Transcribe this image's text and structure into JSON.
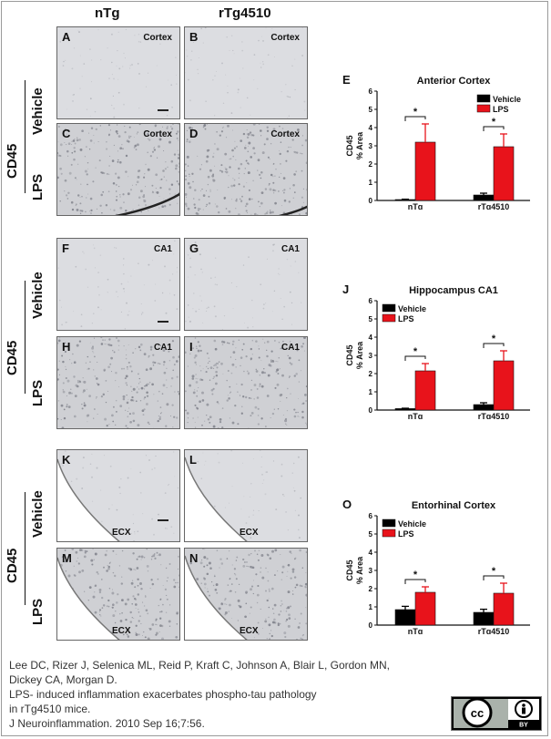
{
  "columns": [
    "nTg",
    "rTg4510"
  ],
  "groups": [
    {
      "marker": "CD45",
      "rows": [
        {
          "label": "Vehicle",
          "panels": [
            {
              "letter": "A",
              "region": "Cortex"
            },
            {
              "letter": "B",
              "region": "Cortex"
            }
          ]
        },
        {
          "label": "LPS",
          "panels": [
            {
              "letter": "C",
              "region": "Cortex"
            },
            {
              "letter": "D",
              "region": "Cortex"
            }
          ]
        }
      ]
    },
    {
      "marker": "CD45",
      "rows": [
        {
          "label": "Vehicle",
          "panels": [
            {
              "letter": "F",
              "region": "CA1"
            },
            {
              "letter": "G",
              "region": "CA1"
            }
          ]
        },
        {
          "label": "LPS",
          "panels": [
            {
              "letter": "H",
              "region": "CA1"
            },
            {
              "letter": "I",
              "region": "CA1"
            }
          ]
        }
      ]
    },
    {
      "marker": "CD45",
      "rows": [
        {
          "label": "Vehicle",
          "panels": [
            {
              "letter": "K",
              "region": "ECX"
            },
            {
              "letter": "L",
              "region": "ECX"
            }
          ]
        },
        {
          "label": "LPS",
          "panels": [
            {
              "letter": "M",
              "region": "ECX"
            },
            {
              "letter": "N",
              "region": "ECX"
            }
          ]
        }
      ]
    }
  ],
  "chart_data": [
    {
      "type": "bar",
      "letter": "E",
      "title": "Anterior Cortex",
      "ylabel": "CD45 % Area",
      "ylim": [
        0,
        6
      ],
      "yticks": [
        0,
        1,
        2,
        3,
        4,
        5,
        6
      ],
      "categories": [
        "nTg",
        "rTg4510"
      ],
      "series": [
        {
          "name": "Vehicle",
          "color": "#000000",
          "values": [
            0.05,
            0.3
          ],
          "errors": [
            0.02,
            0.1
          ]
        },
        {
          "name": "LPS",
          "color": "#e8131b",
          "values": [
            3.2,
            2.95
          ],
          "errors": [
            1.0,
            0.7
          ]
        }
      ],
      "significance": [
        "*",
        "*"
      ],
      "legend": "top-right"
    },
    {
      "type": "bar",
      "letter": "J",
      "title": "Hippocampus CA1",
      "ylabel": "CD45 % Area",
      "ylim": [
        0,
        6
      ],
      "yticks": [
        0,
        1,
        2,
        3,
        4,
        5,
        6
      ],
      "categories": [
        "nTg",
        "rTg4510"
      ],
      "series": [
        {
          "name": "Vehicle",
          "color": "#000000",
          "values": [
            0.08,
            0.3
          ],
          "errors": [
            0.02,
            0.1
          ]
        },
        {
          "name": "LPS",
          "color": "#e8131b",
          "values": [
            2.15,
            2.7
          ],
          "errors": [
            0.4,
            0.55
          ]
        }
      ],
      "significance": [
        "*",
        "*"
      ],
      "legend": "top-left"
    },
    {
      "type": "bar",
      "letter": "O",
      "title": "Entorhinal Cortex",
      "ylabel": "CD45 % Area",
      "ylim": [
        0,
        6
      ],
      "yticks": [
        0,
        1,
        2,
        3,
        4,
        5,
        6
      ],
      "categories": [
        "nTg",
        "rTg4510"
      ],
      "series": [
        {
          "name": "Vehicle",
          "color": "#000000",
          "values": [
            0.85,
            0.7
          ],
          "errors": [
            0.18,
            0.17
          ]
        },
        {
          "name": "LPS",
          "color": "#e8131b",
          "values": [
            1.8,
            1.75
          ],
          "errors": [
            0.3,
            0.55
          ]
        }
      ],
      "significance": [
        "*",
        "*"
      ],
      "legend": "top-left"
    }
  ],
  "caption": [
    "Lee DC, Rizer J, Selenica ML, Reid P, Kraft C, Johnson A, Blair L, Gordon MN,",
    "Dickey CA, Morgan D.",
    "LPS- induced inflammation exacerbates phospho-tau pathology",
    "in rTg4510 mice.",
    "J Neuroinflammation. 2010 Sep 16;7:56."
  ],
  "license": {
    "cc": "cc",
    "by": "BY"
  }
}
